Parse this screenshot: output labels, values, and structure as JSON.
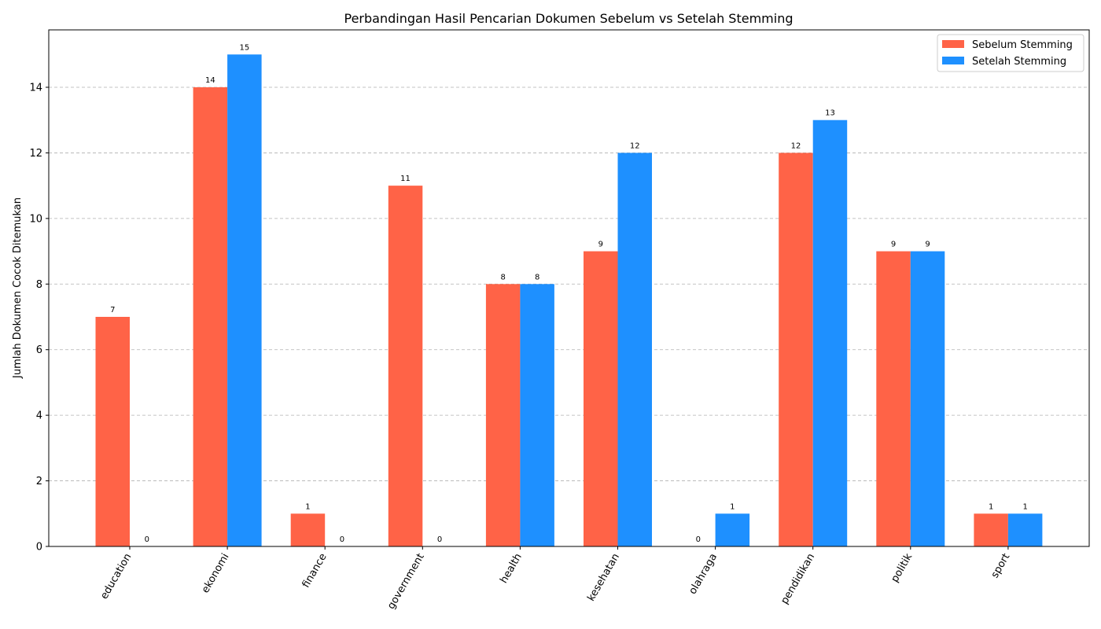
{
  "chart_data": {
    "type": "bar",
    "title": "Perbandingan Hasil Pencarian Dokumen Sebelum vs Setelah Stemming",
    "xlabel": "",
    "ylabel": "Jumlah Dokumen Cocok Ditemukan",
    "categories": [
      "education",
      "ekonomi",
      "finance",
      "government",
      "health",
      "kesehatan",
      "olahraga",
      "pendidikan",
      "politik",
      "sport"
    ],
    "series": [
      {
        "name": "Sebelum Stemming",
        "color": "#ff6347",
        "values": [
          7,
          14,
          1,
          11,
          8,
          9,
          0,
          12,
          9,
          1
        ]
      },
      {
        "name": "Setelah Stemming",
        "color": "#1e90ff",
        "values": [
          0,
          15,
          0,
          0,
          8,
          12,
          1,
          13,
          9,
          1
        ]
      }
    ],
    "ylim": [
      0,
      15.75
    ],
    "yticks": [
      0,
      2,
      4,
      6,
      8,
      10,
      12,
      14
    ],
    "grid": "y-dashed",
    "legend_position": "top-right",
    "x_tick_rotation": "rotated labels"
  }
}
